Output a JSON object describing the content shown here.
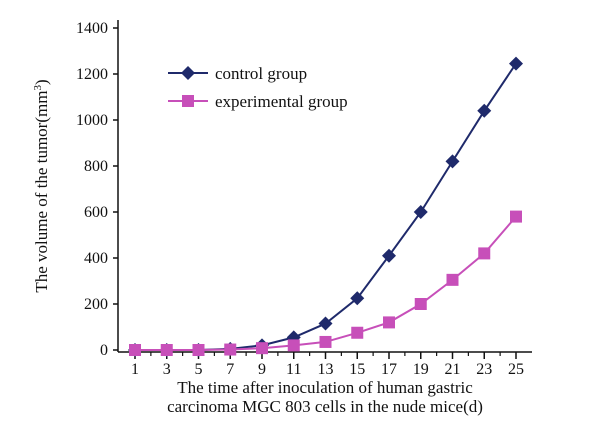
{
  "chart_data": {
    "type": "line",
    "xlabel": [
      "The time after inoculation of human gastric",
      "carcinoma MGC 803 cells in the nude mice(d)"
    ],
    "ylabel": "The volume of the tumor(mm",
    "ylabel_sup": "3",
    "ylabel_close": ")",
    "x": [
      1,
      3,
      5,
      7,
      9,
      11,
      13,
      15,
      17,
      19,
      21,
      23,
      25
    ],
    "x_tick_labels": [
      "1",
      "3",
      "5",
      "7",
      "9",
      "11",
      "13",
      "15",
      "17",
      "19",
      "21",
      "23",
      "25"
    ],
    "ylim": [
      0,
      1400
    ],
    "y_ticks": [
      0,
      200,
      400,
      600,
      800,
      1000,
      1200,
      1400
    ],
    "y_tick_labels": [
      "0",
      "200",
      "400",
      "600",
      "800",
      "1000",
      "1200",
      "1400"
    ],
    "grid": false,
    "legend_position": "top-left",
    "series": [
      {
        "name": "control group",
        "marker": "diamond",
        "color": "#1f2a6b",
        "values": [
          0,
          0,
          0,
          5,
          20,
          55,
          115,
          225,
          410,
          600,
          820,
          1040,
          1245
        ]
      },
      {
        "name": "experimental group",
        "marker": "square",
        "color": "#c74fb9",
        "values": [
          0,
          0,
          0,
          2,
          8,
          20,
          35,
          75,
          120,
          200,
          305,
          420,
          580
        ]
      }
    ]
  }
}
